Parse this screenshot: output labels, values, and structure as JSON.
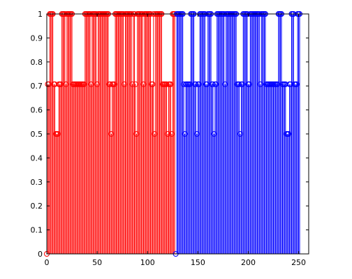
{
  "chart_data": {
    "type": "stem",
    "title": "",
    "xlabel": "",
    "ylabel": "",
    "xlim": [
      0,
      260
    ],
    "ylim": [
      0,
      1
    ],
    "grid": false,
    "legend": "none",
    "x_ticks": [
      0,
      50,
      100,
      150,
      200,
      250
    ],
    "x_tick_labels": [
      "0",
      "50",
      "100",
      "150",
      "200",
      "250"
    ],
    "y_ticks": [
      0,
      0.1,
      0.2,
      0.3,
      0.4,
      0.5,
      0.6,
      0.7,
      0.8,
      0.9,
      1
    ],
    "y_tick_labels": [
      "0",
      "0.1",
      "0.2",
      "0.3",
      "0.4",
      "0.5",
      "0.6",
      "0.7",
      "0.8",
      "0.9",
      "1"
    ],
    "series": [
      {
        "color": "#ff0000",
        "x_start": 0,
        "values": [
          0,
          0.7071,
          0.7071,
          1,
          1,
          1,
          1,
          0.7071,
          0.7071,
          0.5,
          0.5,
          0.5,
          0.7071,
          0.7071,
          0.7071,
          1,
          1,
          1,
          1,
          0.7071,
          1,
          1,
          1,
          1,
          1,
          1,
          0.7071,
          0.7071,
          0.7071,
          0.7071,
          0.7071,
          0.7071,
          0.7071,
          0.7071,
          0.7071,
          0.7071,
          0.7071,
          0.7071,
          1,
          1,
          1,
          1,
          1,
          1,
          0.7071,
          1,
          1,
          1,
          1,
          1,
          0.7071,
          1,
          1,
          1,
          1,
          1,
          1,
          1,
          1,
          1,
          1,
          1,
          0.7071,
          0.7071,
          0.5,
          0.7071,
          0.7071,
          0.7071,
          1,
          1,
          1,
          1,
          1,
          1,
          1,
          1,
          1,
          0.7071,
          1,
          1,
          1,
          1,
          1,
          1,
          1,
          0.7071,
          1,
          1,
          0.7071,
          0.5,
          1,
          1,
          1,
          1,
          1,
          1,
          0.7071,
          1,
          1,
          1,
          1,
          1,
          1,
          1,
          0.7071,
          0.7071,
          1,
          0.5,
          1,
          1,
          1,
          1,
          1,
          1,
          1,
          0.7071,
          0.7071,
          0.7071,
          0.7071,
          0.7071,
          0.5,
          0.7071,
          0.7071,
          0.7071,
          0.5,
          1,
          1,
          1
        ]
      },
      {
        "color": "#0000ff",
        "x_start": 128,
        "values": [
          0,
          1,
          1,
          1,
          1,
          1,
          1,
          1,
          0.7071,
          0.5,
          0.7071,
          0.7071,
          0.7071,
          0.7071,
          0.7071,
          1,
          1,
          1,
          1,
          0.7071,
          0.7071,
          0.5,
          0.7071,
          0.7071,
          1,
          1,
          1,
          1,
          1,
          1,
          0.7071,
          0.7071,
          1,
          1,
          1,
          1,
          0.7071,
          0.7071,
          0.5,
          0.7071,
          0.7071,
          1,
          1,
          1,
          1,
          1,
          1,
          1,
          1,
          0.7071,
          1,
          1,
          1,
          1,
          1,
          1,
          1,
          1,
          1,
          1,
          1,
          0.7071,
          0.7071,
          0.7071,
          0.5,
          0.7071,
          0.7071,
          1,
          1,
          1,
          1,
          1,
          0.7071,
          0.7071,
          1,
          1,
          1,
          1,
          1,
          1,
          1,
          1,
          1,
          1,
          0.7071,
          1,
          1,
          1,
          1,
          1,
          0.7071,
          0.7071,
          0.7071,
          0.7071,
          0.7071,
          0.7071,
          0.7071,
          0.7071,
          0.7071,
          0.7071,
          0.7071,
          0.7071,
          1,
          1,
          1,
          1,
          0.7071,
          0.7071,
          0.7071,
          0.7071,
          0.5,
          0.5,
          0.5,
          0.7071,
          0.7071,
          1,
          1,
          1,
          0.7071,
          0.7071,
          0.7071,
          1,
          1,
          1
        ]
      }
    ]
  }
}
